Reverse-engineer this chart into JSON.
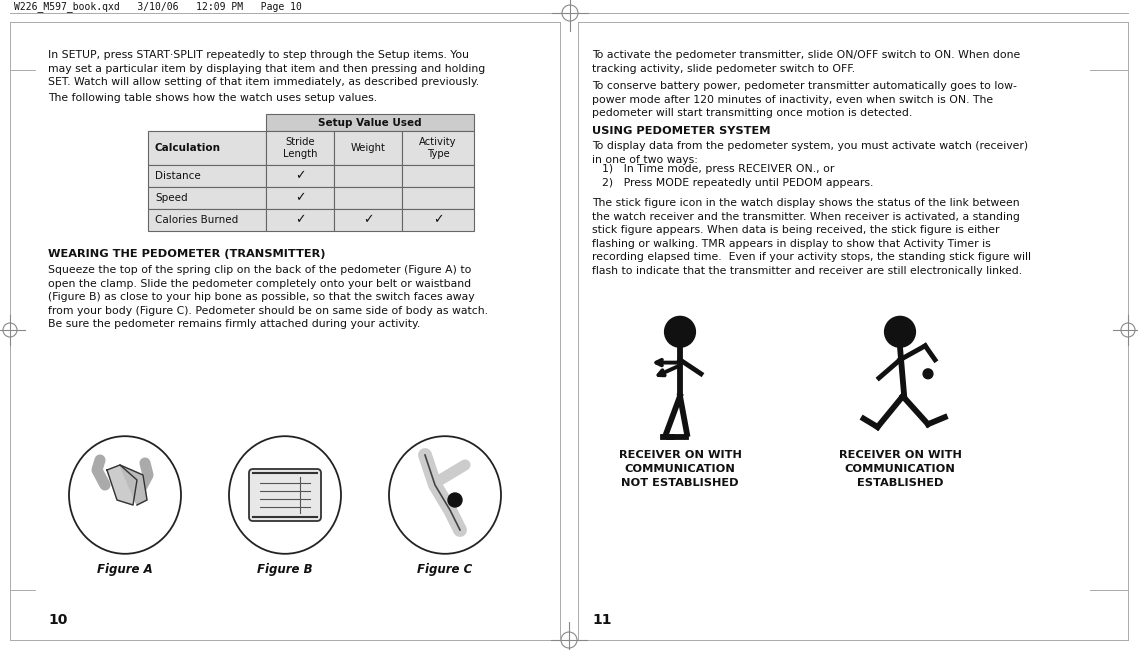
{
  "bg_color": "#ffffff",
  "header_text": "W226_M597_book.qxd   3/10/06   12:09 PM   Page 10",
  "left_page_num": "10",
  "right_page_num": "11",
  "left_text_1": "In SETUP, press START·SPLIT repeatedly to step through the Setup items. You\nmay set a particular item by displaying that item and then pressing and holding\nSET. Watch will allow setting of that item immediately, as described previously.",
  "left_text_2": "The following table shows how the watch uses setup values.",
  "table_header": "Setup Value Used",
  "table_col1": "Calculation",
  "table_col2": "Stride\nLength",
  "table_col3": "Weight",
  "table_col4": "Activity\nType",
  "table_rows": [
    [
      "Distance",
      true,
      false,
      false
    ],
    [
      "Speed",
      true,
      false,
      false
    ],
    [
      "Calories Burned",
      true,
      true,
      true
    ]
  ],
  "wearing_heading": "WEARING THE PEDOMETER (TRANSMITTER)",
  "wearing_text": "Squeeze the top of the spring clip on the back of the pedometer (Figure A) to\nopen the clamp. Slide the pedometer completely onto your belt or waistband\n(Figure B) as close to your hip bone as possible, so that the switch faces away\nfrom your body (Figure C). Pedometer should be on same side of body as watch.\nBe sure the pedometer remains firmly attached during your activity.",
  "fig_a_label": "Figure A",
  "fig_b_label": "Figure B",
  "fig_c_label": "Figure C",
  "right_text_1": "To activate the pedometer transmitter, slide ON/OFF switch to ON. When done\ntracking activity, slide pedometer switch to OFF.",
  "right_text_2": "To conserve battery power, pedometer transmitter automatically goes to low-\npower mode after 120 minutes of inactivity, even when switch is ON. The\npedometer will start transmitting once motion is detected.",
  "using_heading": "USING PEDOMETER SYSTEM",
  "using_text_1": "To display data from the pedometer system, you must activate watch (receiver)\nin one of two ways:",
  "using_list_1": "1)   In Time mode, press RECEIVER ON., or",
  "using_list_2": "2)   Press MODE repeatedly until PEDOM appears.",
  "using_text_2": "The stick figure icon in the watch display shows the status of the link between\nthe watch receiver and the transmitter. When receiver is activated, a standing\nstick figure appears. When data is being received, the stick figure is either\nflashing or walking. TMR appears in display to show that Activity Timer is\nrecording elapsed time.  Even if your activity stops, the standing stick figure will\nflash to indicate that the transmitter and receiver are still electronically linked.",
  "icon1_label": "RECEIVER ON WITH\nCOMMUNICATION\nNOT ESTABLISHED",
  "icon2_label": "RECEIVER ON WITH\nCOMMUNICATION\nESTABLISHED",
  "text_color": "#111111",
  "table_header_bg": "#cccccc",
  "table_subheader_bg": "#e0e0e0",
  "table_row_bg_light": "#f2f2f2",
  "table_border": "#666666"
}
